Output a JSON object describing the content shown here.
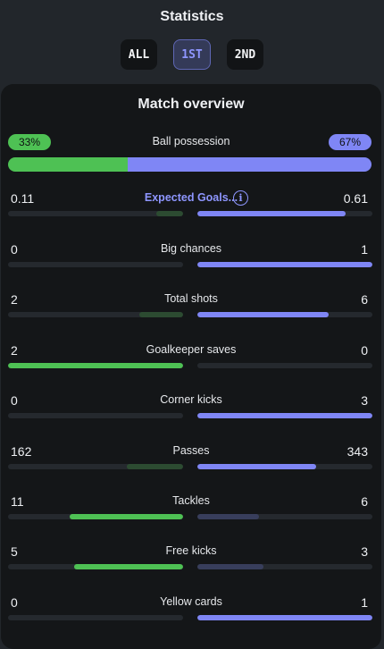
{
  "header": {
    "title": "Statistics"
  },
  "periods": [
    {
      "id": "all",
      "label": "ALL",
      "active": false
    },
    {
      "id": "1st",
      "label": "1ST",
      "active": true
    },
    {
      "id": "2nd",
      "label": "2ND",
      "active": false
    }
  ],
  "card": {
    "title": "Match overview"
  },
  "possession": {
    "label": "Ball possession",
    "home_label": "33%",
    "away_label": "67%",
    "home_pct": 33,
    "away_pct": 67
  },
  "stats": [
    {
      "key": "expected-goals",
      "label": "Expected Goals...",
      "home": "0.11",
      "away": "0.61",
      "home_num": 0.11,
      "away_num": 0.61,
      "link": true,
      "info_icon": "info-icon"
    },
    {
      "key": "big-chances",
      "label": "Big chances",
      "home": "0",
      "away": "1",
      "home_num": 0,
      "away_num": 1
    },
    {
      "key": "total-shots",
      "label": "Total shots",
      "home": "2",
      "away": "6",
      "home_num": 2,
      "away_num": 6
    },
    {
      "key": "goalkeeper-saves",
      "label": "Goalkeeper saves",
      "home": "2",
      "away": "0",
      "home_num": 2,
      "away_num": 0
    },
    {
      "key": "corner-kicks",
      "label": "Corner kicks",
      "home": "0",
      "away": "3",
      "home_num": 0,
      "away_num": 3
    },
    {
      "key": "passes",
      "label": "Passes",
      "home": "162",
      "away": "343",
      "home_num": 162,
      "away_num": 343
    },
    {
      "key": "tackles",
      "label": "Tackles",
      "home": "11",
      "away": "6",
      "home_num": 11,
      "away_num": 6
    },
    {
      "key": "free-kicks",
      "label": "Free kicks",
      "home": "5",
      "away": "3",
      "home_num": 5,
      "away_num": 3
    },
    {
      "key": "yellow-cards",
      "label": "Yellow cards",
      "home": "0",
      "away": "1",
      "home_num": 0,
      "away_num": 1
    }
  ],
  "colors": {
    "home": "#4ec154",
    "away": "#7f86f5",
    "home_muted": "#2c4b31",
    "away_muted": "#383e5c"
  }
}
